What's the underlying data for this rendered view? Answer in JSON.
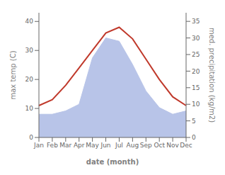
{
  "chart_data": {
    "type": "line",
    "xlabel": "date (month)",
    "ylabel": "max temp (C)",
    "y2label": "med. precipitation (kg/m2)",
    "categories": [
      "Jan",
      "Feb",
      "Mar",
      "Apr",
      "May",
      "Jun",
      "Jul",
      "Aug",
      "Sep",
      "Oct",
      "Nov",
      "Dec"
    ],
    "series": [
      {
        "type": "area",
        "axis": "y2",
        "color": "#b8c4e8",
        "values": [
          7,
          7,
          8,
          10,
          24,
          30,
          29,
          22,
          14,
          9,
          7,
          8
        ]
      },
      {
        "type": "line",
        "color": "#c0392b",
        "values": [
          11,
          13,
          18,
          24,
          30,
          36,
          38,
          34,
          27,
          20,
          14,
          11
        ]
      }
    ],
    "ylim": [
      0,
      43
    ],
    "yticks": [
      0,
      10,
      20,
      30,
      40
    ],
    "y2lim": [
      0,
      37.6
    ],
    "y2ticks": [
      0,
      5,
      10,
      15,
      20,
      25,
      30,
      35
    ],
    "grid": false
  }
}
